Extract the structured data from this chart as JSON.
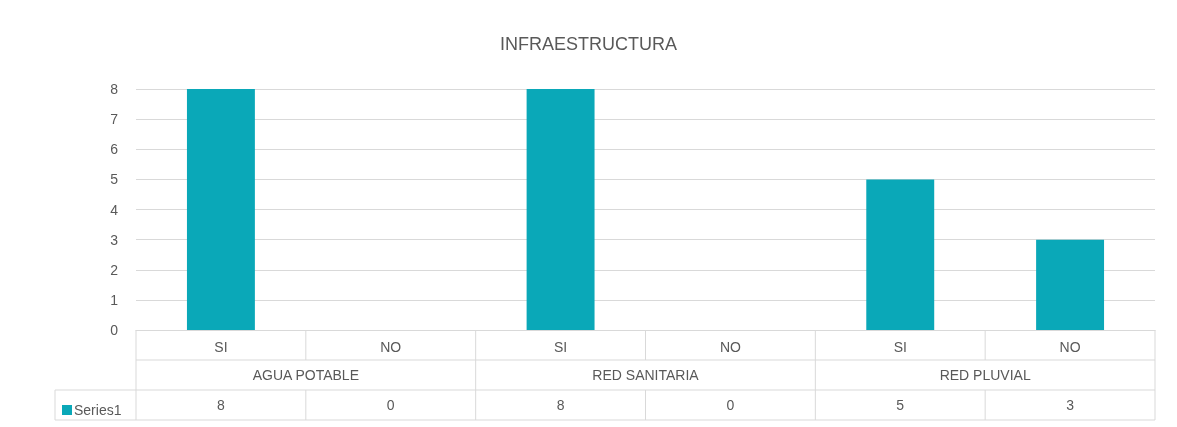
{
  "chart_data": {
    "type": "bar",
    "title": "INFRAESTRUCTURA",
    "categories": [
      "SI",
      "NO",
      "SI",
      "NO",
      "SI",
      "NO"
    ],
    "series": [
      {
        "name": "Series1",
        "color": "#0aa8b8",
        "values": [
          8,
          0,
          8,
          0,
          5,
          3
        ]
      }
    ],
    "annotations": [
      "AGUA POTABLE",
      "RED SANITARIA",
      "RED PLUVIAL"
    ],
    "ylim": [
      0,
      8
    ],
    "yticks": [
      0,
      1,
      2,
      3,
      4,
      5,
      6,
      7,
      8
    ],
    "grid": "y",
    "legend": "bottom left",
    "data_labels": true
  }
}
